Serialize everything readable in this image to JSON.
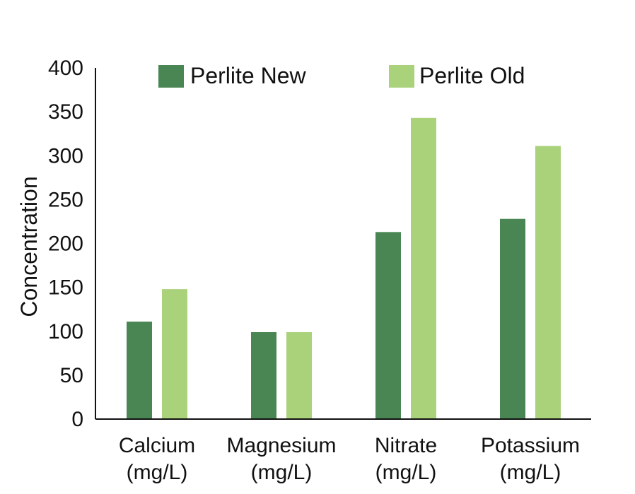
{
  "chart_data": {
    "type": "bar",
    "categories": [
      "Calcium (mg/L)",
      "Magnesium (mg/L)",
      "Nitrate (mg/L)",
      "Potassium (mg/L)"
    ],
    "category_lines": [
      [
        "Calcium",
        "(mg/L)"
      ],
      [
        "Magnesium",
        "(mg/L)"
      ],
      [
        "Nitrate",
        "(mg/L)"
      ],
      [
        "Potassium",
        "(mg/L)"
      ]
    ],
    "series": [
      {
        "name": "Perlite New",
        "color": "#4a8653",
        "values": [
          111,
          99,
          213,
          228
        ]
      },
      {
        "name": "Perlite Old",
        "color": "#aad27b",
        "values": [
          148,
          99,
          343,
          311
        ]
      }
    ],
    "title": "",
    "xlabel": "",
    "ylabel": "Concentration",
    "ylim": [
      0,
      400
    ],
    "yticks": [
      0,
      50,
      100,
      150,
      200,
      250,
      300,
      350,
      400
    ],
    "grid": false,
    "legend_position": "top"
  }
}
